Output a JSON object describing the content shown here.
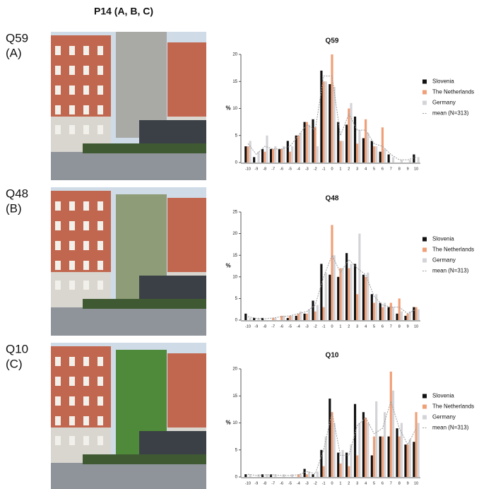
{
  "figure_title": "P14 (A, B, C)",
  "panel_labels": [
    [
      "Q59",
      "(A)"
    ],
    [
      "Q48",
      "(B)"
    ],
    [
      "Q10",
      "(C)"
    ]
  ],
  "chart_data": [
    {
      "type": "bar",
      "title": "Q59",
      "y_label": "%",
      "categories": [
        "-10",
        "-9",
        "-8",
        "-7",
        "-6",
        "-5",
        "-4",
        "-3",
        "-2",
        "-1",
        "0",
        "1",
        "2",
        "3",
        "4",
        "5",
        "6",
        "7",
        "8",
        "9",
        "10"
      ],
      "ylim": [
        0,
        20
      ],
      "yticks": [
        0,
        5,
        10,
        15,
        20
      ],
      "series": [
        {
          "name": "Slovenia",
          "color": "#111111",
          "values": [
            3,
            1,
            2.5,
            2.5,
            2.5,
            4,
            5,
            7.5,
            8,
            17,
            14.5,
            7.5,
            7,
            8.5,
            4.5,
            4,
            2,
            1.5,
            0,
            0,
            1.5
          ]
        },
        {
          "name": "The Netherlands",
          "color": "#f0a078",
          "values": [
            3,
            0,
            2,
            2.5,
            2.5,
            2,
            5,
            7.5,
            6.5,
            15,
            20,
            4,
            10,
            3.5,
            8,
            3,
            6.5,
            0,
            0,
            0,
            0
          ]
        },
        {
          "name": "Germany",
          "color": "#d4d4d8",
          "values": [
            4,
            2,
            5,
            3,
            3,
            3,
            5.5,
            7,
            3,
            15,
            14,
            4,
            11,
            6,
            5.5,
            3,
            2.5,
            1,
            0.5,
            0.5,
            1
          ]
        },
        {
          "name": "mean (N=313)",
          "color": "#9a9a9a",
          "style": "line",
          "values": [
            3.5,
            1.5,
            3,
            2.5,
            2.5,
            3,
            5,
            7,
            6,
            16,
            16,
            5,
            9,
            6,
            6,
            3.5,
            3,
            1.5,
            0.5,
            0.5,
            1
          ]
        }
      ]
    },
    {
      "type": "bar",
      "title": "Q48",
      "y_label": "%",
      "categories": [
        "-10",
        "-9",
        "-8",
        "-7",
        "-6",
        "-5",
        "-4",
        "-3",
        "-2",
        "-1",
        "0",
        "1",
        "2",
        "3",
        "4",
        "5",
        "6",
        "7",
        "8",
        "9",
        "10"
      ],
      "ylim": [
        0,
        25
      ],
      "yticks": [
        0,
        5,
        10,
        15,
        20,
        25
      ],
      "series": [
        {
          "name": "Slovenia",
          "color": "#111111",
          "values": [
            1.5,
            0.5,
            0.5,
            0,
            0,
            0.5,
            1,
            1.5,
            4.5,
            13,
            10.5,
            10,
            15.5,
            13,
            10.5,
            6,
            4,
            3,
            1.5,
            1,
            3
          ]
        },
        {
          "name": "The Netherlands",
          "color": "#f0a078",
          "values": [
            0,
            0,
            0,
            0.5,
            1,
            1,
            1.5,
            1.5,
            2,
            3,
            22,
            12,
            12,
            6,
            10,
            4,
            3,
            4,
            5,
            1.5,
            3
          ]
        },
        {
          "name": "Germany",
          "color": "#d4d4d8",
          "values": [
            0.5,
            0.5,
            0,
            0.5,
            1,
            1,
            2,
            2.5,
            3.5,
            11,
            15,
            12,
            13,
            20,
            11,
            6,
            4,
            3,
            2,
            2,
            2.5
          ]
        },
        {
          "name": "mean (N=313)",
          "color": "#9a9a9a",
          "style": "line",
          "values": [
            0.8,
            0.4,
            0.3,
            0.5,
            0.8,
            1,
            1.5,
            2,
            3.5,
            10,
            15,
            11,
            14,
            12,
            10.5,
            5.5,
            3.5,
            3,
            3,
            1.5,
            2.5
          ]
        }
      ]
    },
    {
      "type": "bar",
      "title": "Q10",
      "y_label": "%",
      "categories": [
        "-10",
        "-9",
        "-8",
        "-7",
        "-6",
        "-5",
        "-4",
        "-3",
        "-2",
        "-1",
        "0",
        "1",
        "2",
        "3",
        "4",
        "5",
        "6",
        "7",
        "8",
        "9",
        "10"
      ],
      "ylim": [
        0,
        20
      ],
      "yticks": [
        0,
        5,
        10,
        15,
        20
      ],
      "series": [
        {
          "name": "Slovenia",
          "color": "#111111",
          "values": [
            0.5,
            0,
            0.5,
            0.5,
            0,
            0,
            0,
            1.5,
            0.5,
            5,
            14.5,
            4.5,
            4.5,
            13.5,
            12,
            4,
            7.5,
            7.5,
            9,
            6,
            6.5
          ]
        },
        {
          "name": "The Netherlands",
          "color": "#f0a078",
          "values": [
            0,
            0,
            0,
            0,
            0,
            0,
            0.5,
            0.5,
            0,
            2,
            12,
            2.5,
            2,
            4,
            11,
            7.5,
            7.5,
            19.5,
            7.5,
            6,
            12
          ]
        },
        {
          "name": "Germany",
          "color": "#d4d4d8",
          "values": [
            0.5,
            0.5,
            0.5,
            0.5,
            0.5,
            0.5,
            0.5,
            1,
            1,
            7.5,
            10,
            5,
            6,
            10,
            10,
            14,
            12,
            16,
            10,
            7,
            10
          ]
        },
        {
          "name": "mean (N=313)",
          "color": "#9a9a9a",
          "style": "line",
          "values": [
            0.5,
            0.3,
            0.4,
            0.4,
            0.3,
            0.3,
            0.4,
            1,
            0.6,
            5,
            12,
            4,
            4,
            9.5,
            11,
            8,
            9,
            14,
            9,
            6,
            9
          ]
        }
      ]
    }
  ]
}
